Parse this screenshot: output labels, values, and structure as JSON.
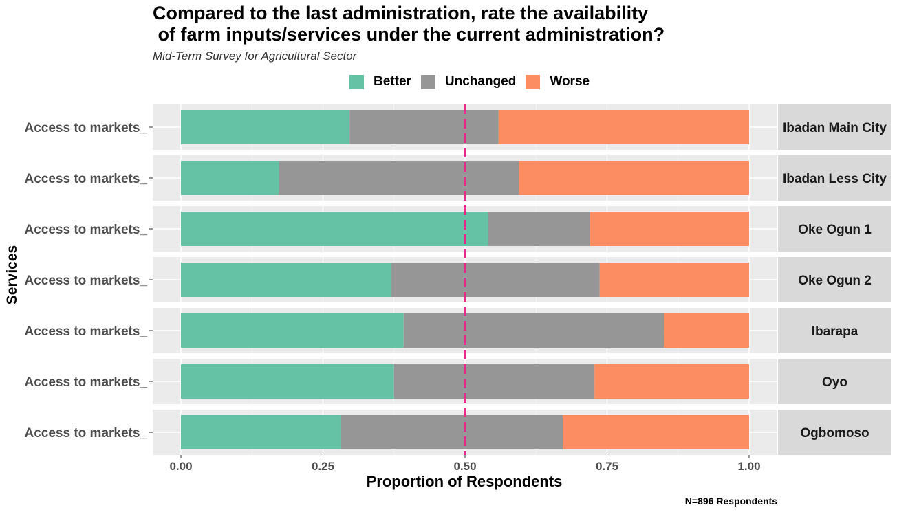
{
  "title": "Compared to the last administration, rate the availability\n of farm inputs/services under the current administration?",
  "subtitle": "Mid-Term Survey for Agricultural Sector",
  "legend": [
    {
      "label": "Better",
      "color": "#66C2A5"
    },
    {
      "label": "Unchanged",
      "color": "#969696"
    },
    {
      "label": "Worse",
      "color": "#FC8D62"
    }
  ],
  "caption": "N=896 Respondents",
  "chart_data": {
    "type": "bar",
    "orientation": "horizontal",
    "stacked": true,
    "xlabel": "Proportion of Respondents",
    "ylabel": "Services",
    "xlim": [
      0,
      1
    ],
    "x_ticks": [
      "0.00",
      "0.25",
      "0.50",
      "0.75",
      "1.00"
    ],
    "reference_line": {
      "x": 0.5,
      "style": "dashed",
      "color": "#E7298A"
    },
    "category": "Access to markets_",
    "panels": [
      "Ibadan Main City",
      "Ibadan Less City",
      "Oke Ogun 1",
      "Oke Ogun 2",
      "Ibarapa",
      "Oyo",
      "Ogbomoso"
    ],
    "series": [
      {
        "name": "Better",
        "color": "#66C2A5",
        "values": [
          0.297,
          0.172,
          0.54,
          0.37,
          0.392,
          0.375,
          0.282
        ]
      },
      {
        "name": "Unchanged",
        "color": "#969696",
        "values": [
          0.262,
          0.423,
          0.18,
          0.367,
          0.458,
          0.353,
          0.39
        ]
      },
      {
        "name": "Worse",
        "color": "#FC8D62",
        "values": [
          0.441,
          0.405,
          0.28,
          0.263,
          0.15,
          0.272,
          0.328
        ]
      }
    ],
    "legend_position": "top",
    "grid": true
  }
}
